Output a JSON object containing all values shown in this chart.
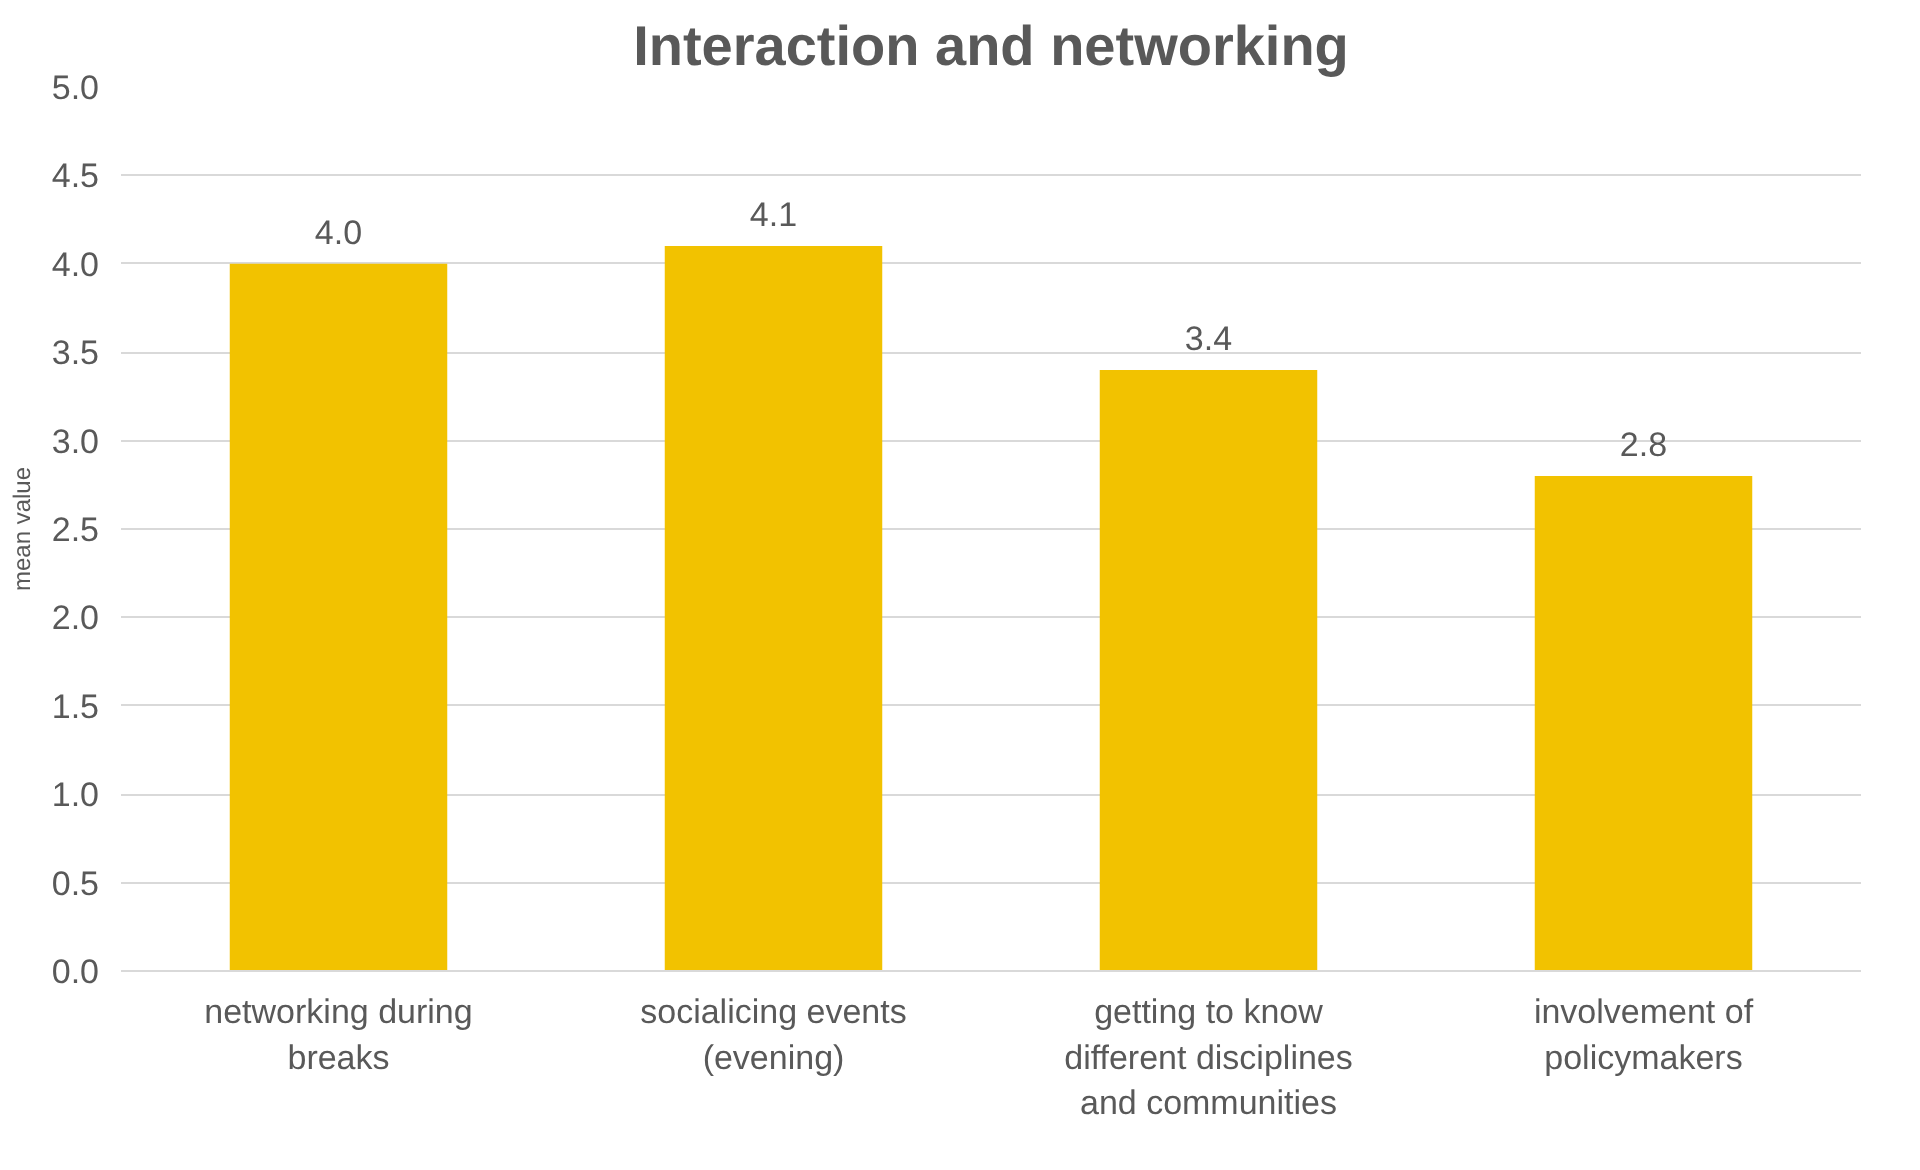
{
  "chart_data": {
    "type": "bar",
    "title": "Interaction and networking",
    "ylabel": "mean value",
    "categories": [
      "networking during breaks",
      "socialicing events (evening)",
      "getting to know different disciplines and communities",
      "involvement of policymakers"
    ],
    "values": [
      4.0,
      4.1,
      3.4,
      2.8
    ],
    "color": "#f2c200",
    "ylim": [
      0,
      5
    ],
    "yticks": [
      {
        "value": 0,
        "label": "0.0"
      },
      {
        "value": 0.5,
        "label": "0.5"
      },
      {
        "value": 1,
        "label": "1.0"
      },
      {
        "value": 1.5,
        "label": "1.5"
      },
      {
        "value": 2,
        "label": "2.0"
      },
      {
        "value": 2.5,
        "label": "2.5"
      },
      {
        "value": 3,
        "label": "3.0"
      },
      {
        "value": 3.5,
        "label": "3.5"
      },
      {
        "value": 4,
        "label": "4.0"
      },
      {
        "value": 4.5,
        "label": "4.5"
      },
      {
        "value": 5,
        "label": "5.0"
      }
    ],
    "value_labels": [
      "4.0",
      "4.1",
      "3.4",
      "2.8"
    ],
    "grid": "y"
  }
}
